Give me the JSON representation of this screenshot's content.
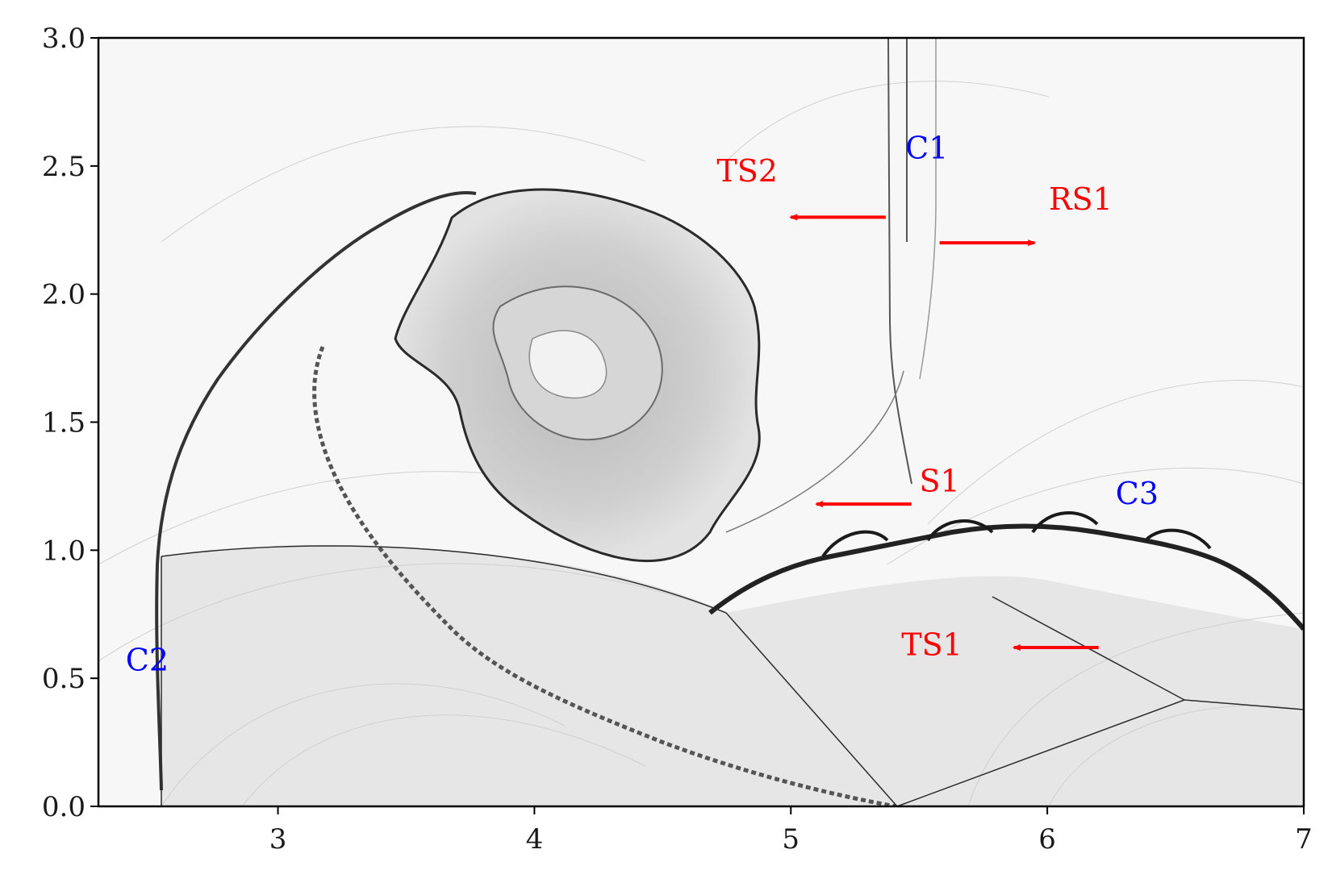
{
  "chart_data": {
    "type": "other",
    "xlim": [
      2.3,
      7.0
    ],
    "ylim": [
      0.0,
      3.0
    ],
    "x_ticks": [
      {
        "value": 3,
        "label": "3"
      },
      {
        "value": 4,
        "label": "4"
      },
      {
        "value": 5,
        "label": "5"
      },
      {
        "value": 6,
        "label": "6"
      },
      {
        "value": 7,
        "label": "7"
      }
    ],
    "y_ticks": [
      {
        "value": 0.0,
        "label": "0.0"
      },
      {
        "value": 0.5,
        "label": "0.5"
      },
      {
        "value": 1.0,
        "label": "1.0"
      },
      {
        "value": 1.5,
        "label": "1.5"
      },
      {
        "value": 2.0,
        "label": "2.0"
      },
      {
        "value": 2.5,
        "label": "2.5"
      },
      {
        "value": 3.0,
        "label": "3.0"
      }
    ],
    "grid": false,
    "background": "grayscale numerical schlieren image",
    "annotations": [
      {
        "text": "C1",
        "x": 5.53,
        "y": 2.53,
        "color": "#0000ff"
      },
      {
        "text": "TS2",
        "x": 4.83,
        "y": 2.44,
        "color": "#ff0000"
      },
      {
        "text": "RS1",
        "x": 6.13,
        "y": 2.33,
        "color": "#ff0000"
      },
      {
        "text": "S1",
        "x": 5.58,
        "y": 1.23,
        "color": "#ff0000"
      },
      {
        "text": "C3",
        "x": 6.35,
        "y": 1.18,
        "color": "#0000ff"
      },
      {
        "text": "TS1",
        "x": 5.55,
        "y": 0.59,
        "color": "#ff0000"
      },
      {
        "text": "C2",
        "x": 2.49,
        "y": 0.53,
        "color": "#0000ff"
      }
    ],
    "arrows": [
      {
        "from": [
          5.37,
          2.3
        ],
        "to": [
          5.0,
          2.3
        ],
        "color": "#ff0000"
      },
      {
        "from": [
          5.58,
          2.2
        ],
        "to": [
          5.95,
          2.2
        ],
        "color": "#ff0000"
      },
      {
        "from": [
          5.47,
          1.18
        ],
        "to": [
          5.1,
          1.18
        ],
        "color": "#ff0000"
      },
      {
        "from": [
          6.2,
          0.62
        ],
        "to": [
          5.87,
          0.62
        ],
        "color": "#ff0000"
      }
    ]
  }
}
